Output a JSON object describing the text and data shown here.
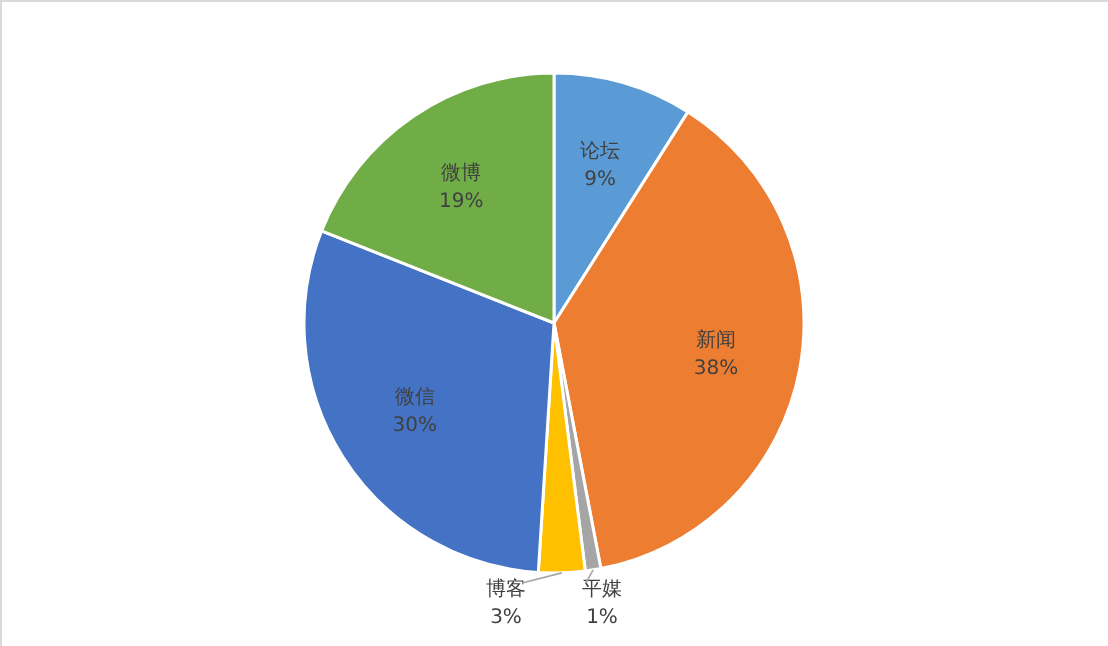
{
  "chart_data": {
    "type": "pie",
    "categories": [
      "论坛",
      "新闻",
      "平媒",
      "博客",
      "微信",
      "微博"
    ],
    "values": [
      9,
      38,
      1,
      3,
      30,
      19
    ],
    "value_labels": [
      "9%",
      "38%",
      "1%",
      "3%",
      "30%",
      "19%"
    ],
    "colors": [
      "#5b9bd5",
      "#ed7d31",
      "#a5a5a5",
      "#ffc000",
      "#4472c4",
      "#70ad47"
    ]
  }
}
